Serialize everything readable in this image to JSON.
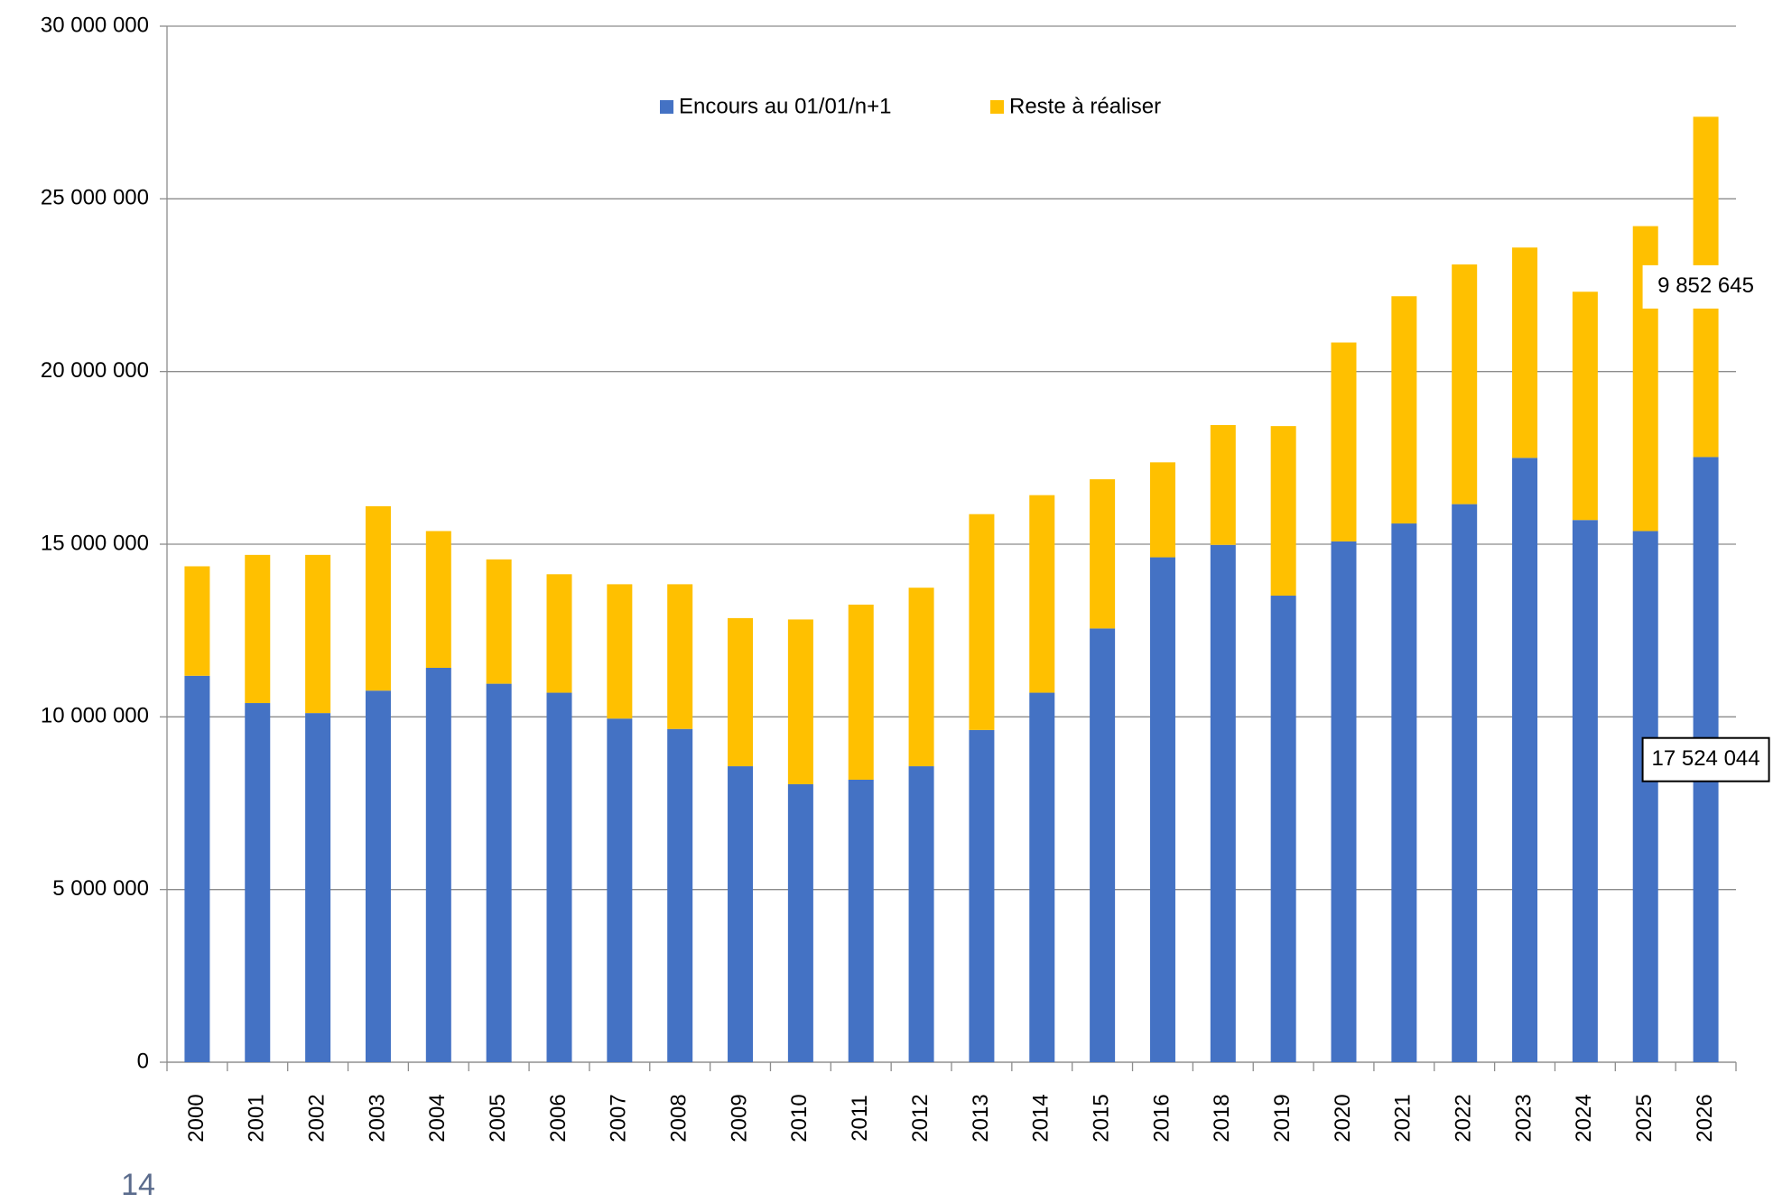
{
  "chart_data": {
    "type": "stacked_bar",
    "categories": [
      "2000",
      "2001",
      "2002",
      "2003",
      "2004",
      "2005",
      "2006",
      "2007",
      "2008",
      "2009",
      "2010",
      "2011",
      "2012",
      "2013",
      "2014",
      "2015",
      "2016",
      "2018",
      "2019",
      "2020",
      "2021",
      "2022",
      "2023",
      "2024",
      "2025",
      "2026"
    ],
    "series": [
      {
        "name": "Encours au 01/01/n+1",
        "color": "#4472c4",
        "values": [
          11190000,
          10400000,
          10110000,
          10760000,
          11420000,
          10960000,
          10700000,
          9950000,
          9650000,
          8570000,
          8050000,
          8180000,
          8570000,
          9620000,
          10700000,
          12560000,
          14620000,
          14980000,
          13510000,
          15080000,
          15600000,
          16160000,
          17500000,
          15700000,
          15380000,
          17524044
        ],
        "value_labels": [
          null,
          null,
          null,
          null,
          null,
          null,
          null,
          null,
          null,
          null,
          null,
          null,
          null,
          null,
          null,
          null,
          null,
          null,
          null,
          null,
          null,
          null,
          null,
          null,
          null,
          "17 524 044"
        ]
      },
      {
        "name": "Reste à réaliser",
        "color": "#ffc000",
        "values": [
          3170000,
          4290000,
          4580000,
          5340000,
          3960000,
          3600000,
          3430000,
          3890000,
          4190000,
          4290000,
          4770000,
          5070000,
          5170000,
          6250000,
          5720000,
          4320000,
          2750000,
          3470000,
          4910000,
          5760000,
          6580000,
          6940000,
          6090000,
          6610000,
          8830000,
          9852645
        ],
        "value_labels": [
          null,
          null,
          null,
          null,
          null,
          null,
          null,
          null,
          null,
          null,
          null,
          null,
          null,
          null,
          null,
          null,
          null,
          null,
          null,
          null,
          null,
          null,
          null,
          null,
          null,
          "9 852 645"
        ]
      }
    ],
    "ylim": [
      0,
      30000000
    ],
    "yticks": [
      0,
      {
        "value": 5000000,
        "label": "5 000 000"
      },
      {
        "value": 10000000,
        "label": "10 000 000"
      },
      {
        "value": 15000000,
        "label": "15 000 000"
      },
      {
        "value": 20000000,
        "label": "20 000 000"
      },
      {
        "value": 25000000,
        "label": "25 000 000"
      },
      {
        "value": 30000000,
        "label": "30 000 000"
      }
    ],
    "grid": true,
    "legend": "top"
  },
  "footer": {
    "page_number": "14"
  }
}
